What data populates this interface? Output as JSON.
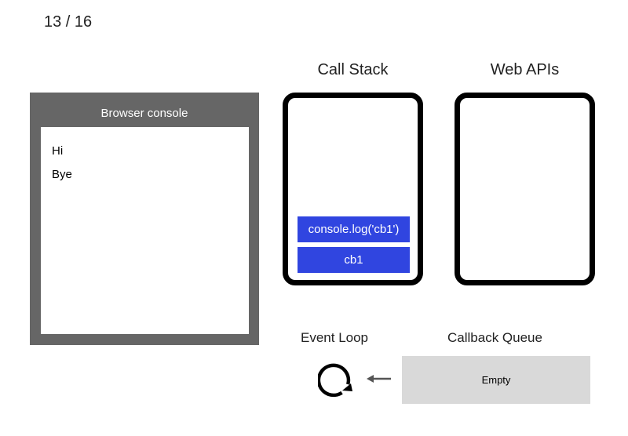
{
  "slide": {
    "page_indicator": "13 / 16"
  },
  "console": {
    "title": "Browser console",
    "lines": [
      "Hi",
      "Bye"
    ]
  },
  "call_stack": {
    "title": "Call Stack",
    "frames": [
      "console.log('cb1')",
      "cb1"
    ]
  },
  "web_apis": {
    "title": "Web APIs"
  },
  "event_loop": {
    "label": "Event Loop",
    "icon": "refresh-cycle-icon"
  },
  "callback_queue": {
    "label": "Callback Queue",
    "content": "Empty",
    "arrow_icon": "left-arrow-icon"
  },
  "colors": {
    "console_frame": "#666666",
    "stack_frame": "#3045e0",
    "queue_fill": "#d9d9d9"
  }
}
